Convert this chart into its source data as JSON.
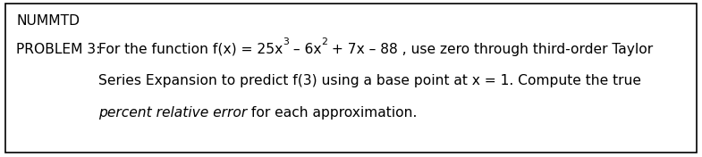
{
  "header": "NUMMTD",
  "label": "PROBLEM 3:",
  "line1_pre": "For the function f(x) = 25x",
  "sup1": "3",
  "line1_mid": " – 6x",
  "sup2": "2",
  "line1_post": " + 7x – 88 , use zero through third-order Taylor",
  "line2": "Series Expansion to predict f(3) using a base point at x = 1. Compute the true",
  "line3_italic": "percent relative error",
  "line3_normal": " for each approximation.",
  "bg_color": "#ffffff",
  "border_color": "#000000",
  "text_color": "#000000",
  "font_size": 11.2,
  "sup_font_size": 7.8,
  "fig_width": 7.85,
  "fig_height": 1.76,
  "dpi": 100
}
